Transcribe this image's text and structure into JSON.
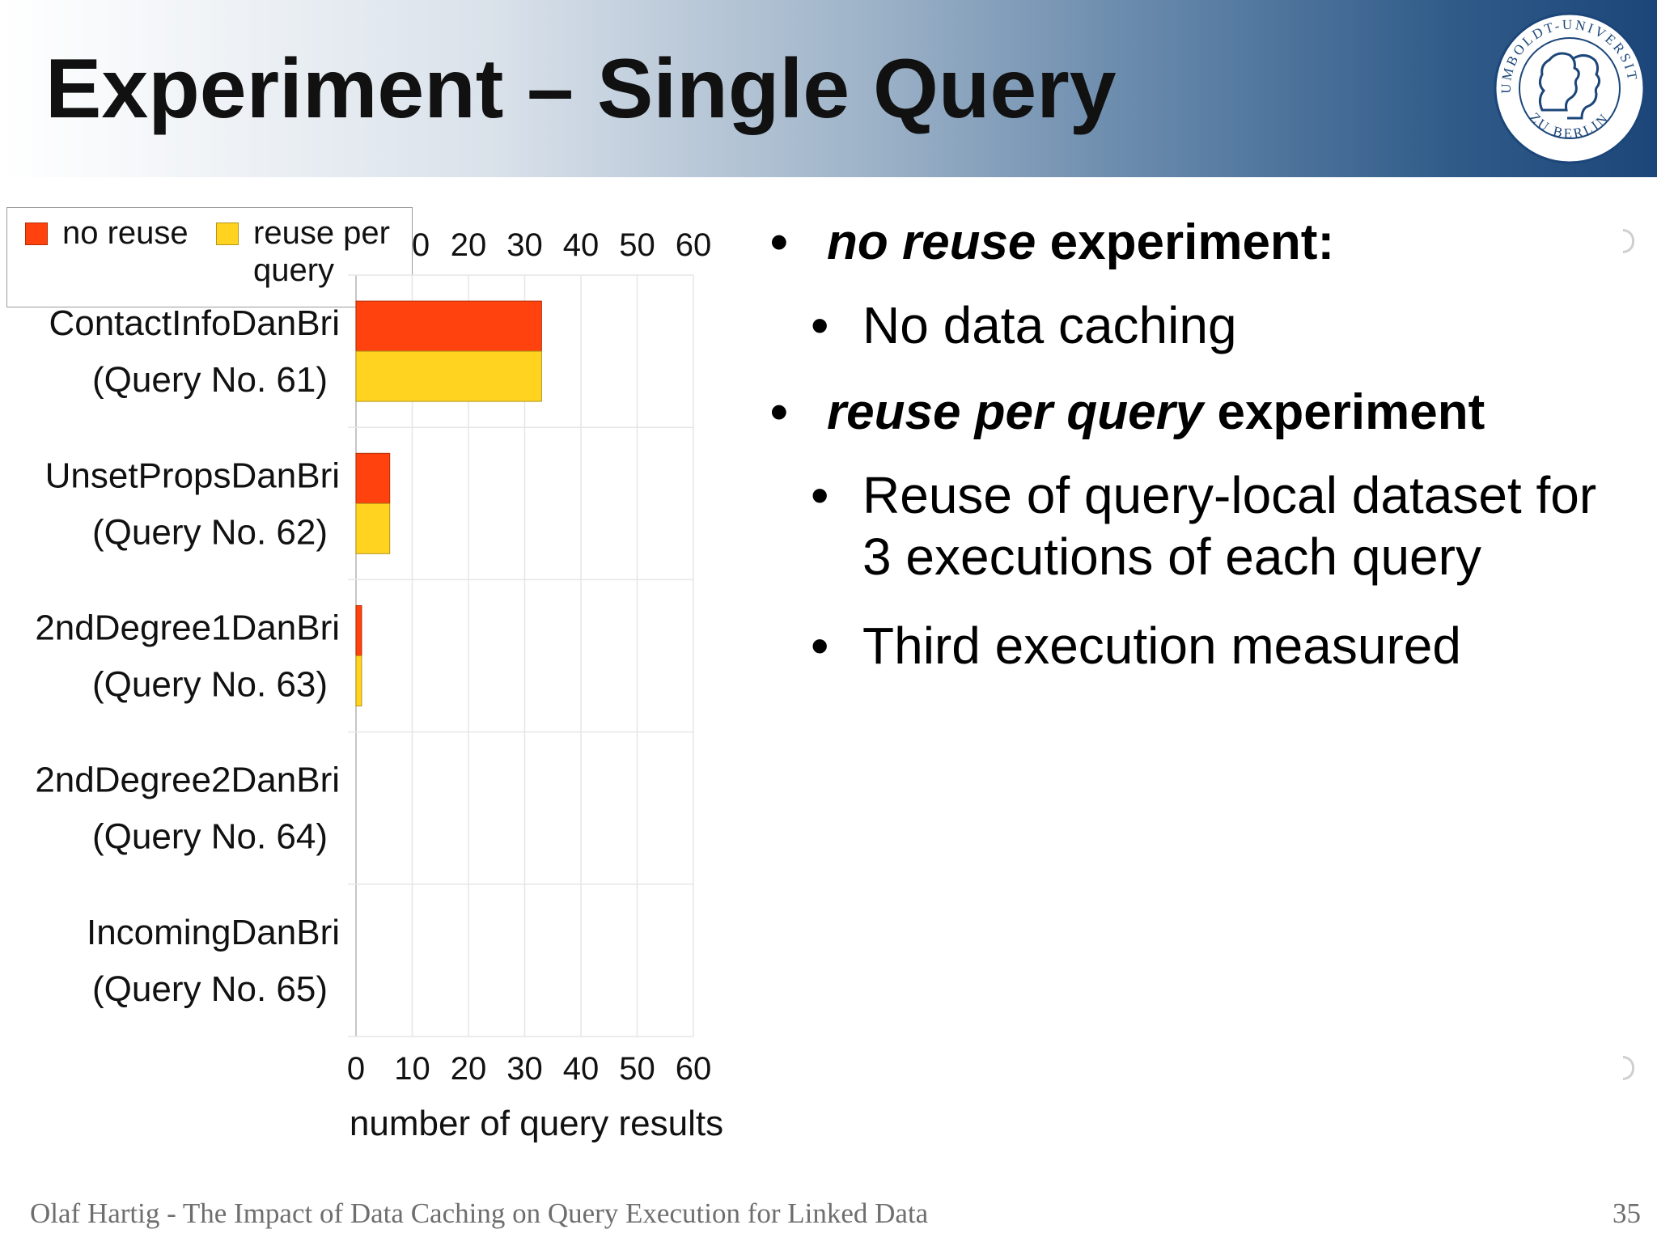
{
  "slide": {
    "title": "Experiment – Single Query",
    "footer": "Olaf Hartig - The Impact of Data Caching on Query Execution for Linked Data",
    "page_number": "35",
    "logo": {
      "ring_top": "HUMBOLDT-UNIVERSITÄT",
      "ring_bottom": "ZU BERLIN"
    }
  },
  "bullets": [
    {
      "level": 1,
      "parts": [
        {
          "text": "no reuse",
          "italic": true
        },
        {
          "text": " experiment:",
          "italic": false
        }
      ]
    },
    {
      "level": 2,
      "text": "No data caching"
    },
    {
      "level": 1,
      "parts": [
        {
          "text": "reuse per query",
          "italic": true
        },
        {
          "text": " experiment",
          "italic": false
        }
      ]
    },
    {
      "level": 2,
      "text": "Reuse of query-local dataset for 3 executions of each query"
    },
    {
      "level": 2,
      "text": "Third execution measured"
    }
  ],
  "chart_data": {
    "type": "bar",
    "orientation": "horizontal",
    "categories": [
      [
        "ContactInfoDanBri",
        "(Query No. 61)"
      ],
      [
        "UnsetPropsDanBri",
        "(Query No. 62)"
      ],
      [
        "2ndDegree1DanBri",
        "(Query No. 63)"
      ],
      [
        "2ndDegree2DanBri",
        "(Query No. 64)"
      ],
      [
        "IncomingDanBri",
        "(Query No. 65)"
      ]
    ],
    "series": [
      {
        "name": "no reuse",
        "values": [
          33,
          6,
          1,
          0,
          0
        ],
        "color": "#ff420e"
      },
      {
        "name": "reuse per query",
        "values": [
          33,
          6,
          1,
          0,
          0
        ],
        "color": "#ffd320"
      }
    ],
    "xlim": [
      0,
      60
    ],
    "xticks": [
      0,
      10,
      20,
      30,
      40,
      50,
      60
    ],
    "top_tick_labels": [
      "0",
      "20",
      "30",
      "40",
      "50",
      "60"
    ],
    "xlabel": "number of query results",
    "ylabel": "",
    "grid": true,
    "legend_position": "top-left"
  }
}
